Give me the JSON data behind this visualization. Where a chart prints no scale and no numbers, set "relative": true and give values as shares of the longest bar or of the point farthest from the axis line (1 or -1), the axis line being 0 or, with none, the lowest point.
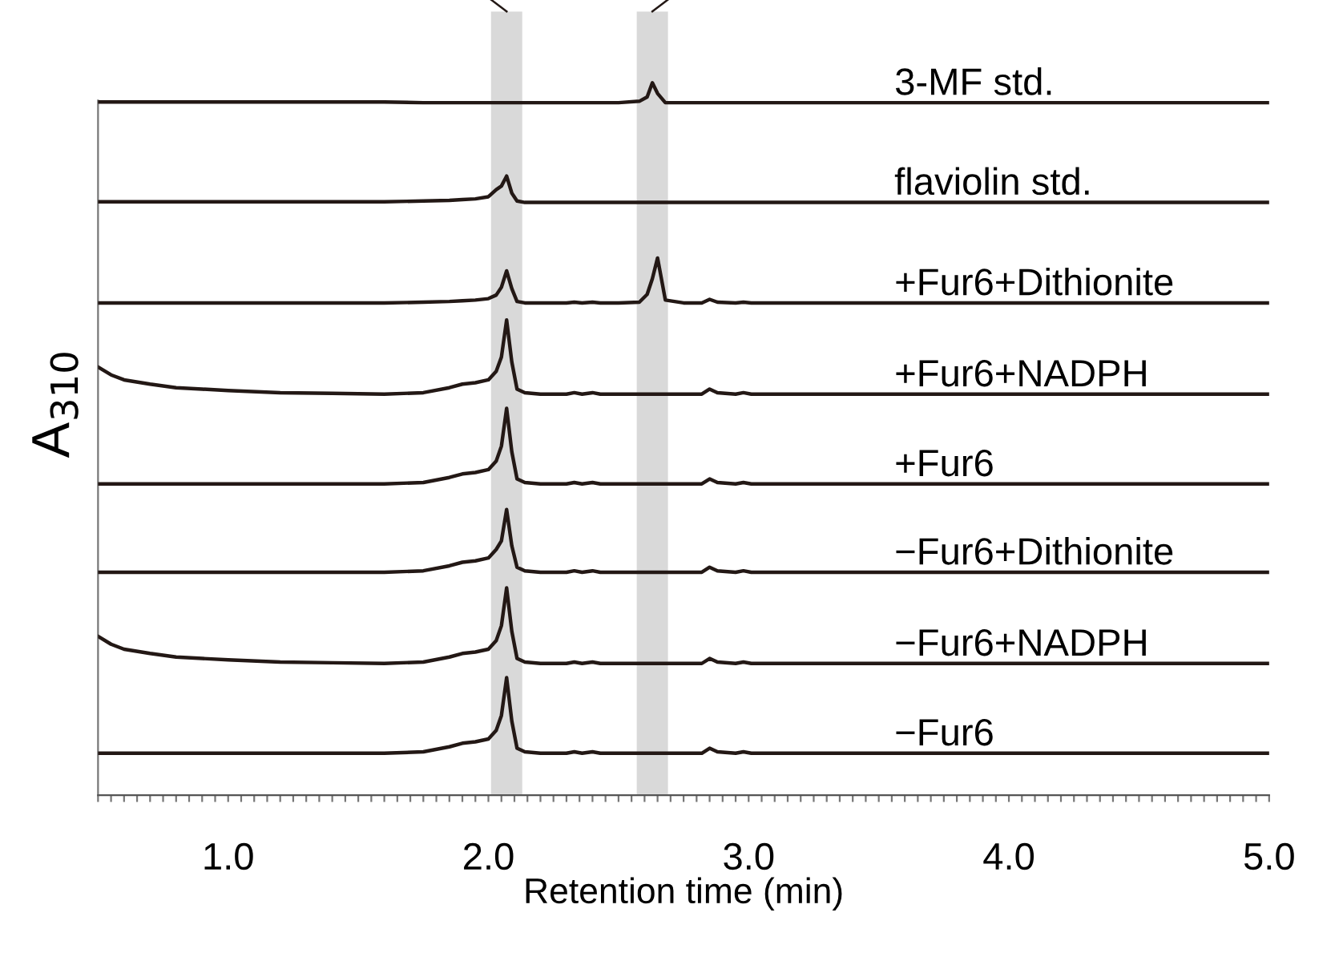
{
  "chart_data": {
    "type": "line",
    "relative": true,
    "xlabel": "Retention time (min)",
    "ylabel": "A$_{310}$",
    "xlim": [
      0.5,
      5.0
    ],
    "xticks": [
      {
        "value": 1.0,
        "label": "1.0"
      },
      {
        "value": 2.0,
        "label": "2.0"
      },
      {
        "value": 3.0,
        "label": "3.0"
      },
      {
        "value": 4.0,
        "label": "4.0"
      },
      {
        "value": 5.0,
        "label": "5.0"
      }
    ],
    "x": [
      0.5,
      0.55,
      0.6,
      0.7,
      0.8,
      0.9,
      1.0,
      1.2,
      1.4,
      1.6,
      1.75,
      1.85,
      1.9,
      1.95,
      2.0,
      2.03,
      2.05,
      2.07,
      2.09,
      2.11,
      2.14,
      2.2,
      2.3,
      2.33,
      2.36,
      2.4,
      2.43,
      2.5,
      2.58,
      2.61,
      2.63,
      2.65,
      2.68,
      2.75,
      2.82,
      2.85,
      2.88,
      2.95,
      2.98,
      3.01,
      3.1,
      3.5,
      4.0,
      4.5,
      5.0
    ],
    "bands": [
      {
        "axis": "x",
        "from": 2.01,
        "to": 2.13,
        "color": "#d9d9d9"
      },
      {
        "axis": "x",
        "from": 2.57,
        "to": 2.69,
        "color": "#d9d9d9"
      }
    ],
    "legend": false,
    "grid": false,
    "marker": "none",
    "line_style": "solid",
    "series": [
      {
        "name": "3-MF std.",
        "color": "#231815",
        "values": [
          0.973,
          0.973,
          0.973,
          0.973,
          0.973,
          0.973,
          0.973,
          0.973,
          0.973,
          0.973,
          0.972,
          0.972,
          0.972,
          0.972,
          0.972,
          0.972,
          0.972,
          0.972,
          0.972,
          0.972,
          0.972,
          0.972,
          0.972,
          0.972,
          0.972,
          0.972,
          0.972,
          0.972,
          0.974,
          0.98,
          1.0,
          0.985,
          0.972,
          0.972,
          0.972,
          0.972,
          0.972,
          0.972,
          0.972,
          0.972,
          0.972,
          0.972,
          0.972,
          0.972,
          0.972
        ]
      },
      {
        "name": "flaviolin std.",
        "color": "#231815",
        "values": [
          0.833,
          0.833,
          0.833,
          0.833,
          0.833,
          0.833,
          0.833,
          0.833,
          0.833,
          0.833,
          0.834,
          0.835,
          0.836,
          0.837,
          0.84,
          0.85,
          0.855,
          0.869,
          0.845,
          0.834,
          0.832,
          0.832,
          0.832,
          0.832,
          0.832,
          0.832,
          0.832,
          0.832,
          0.832,
          0.832,
          0.832,
          0.832,
          0.832,
          0.832,
          0.832,
          0.832,
          0.832,
          0.832,
          0.832,
          0.832,
          0.832,
          0.832,
          0.832,
          0.832,
          0.832
        ]
      },
      {
        "name": "+Fur6+Dithionite",
        "color": "#231815",
        "values": [
          0.691,
          0.691,
          0.691,
          0.691,
          0.691,
          0.691,
          0.691,
          0.691,
          0.691,
          0.691,
          0.692,
          0.693,
          0.694,
          0.695,
          0.697,
          0.702,
          0.713,
          0.736,
          0.711,
          0.693,
          0.691,
          0.691,
          0.691,
          0.692,
          0.691,
          0.692,
          0.691,
          0.691,
          0.692,
          0.703,
          0.725,
          0.754,
          0.695,
          0.691,
          0.691,
          0.696,
          0.692,
          0.691,
          0.692,
          0.691,
          0.691,
          0.691,
          0.691,
          0.691,
          0.691
        ]
      },
      {
        "name": "+Fur6+NADPH",
        "color": "#231815",
        "values": [
          0.601,
          0.59,
          0.583,
          0.577,
          0.572,
          0.57,
          0.568,
          0.565,
          0.564,
          0.563,
          0.565,
          0.572,
          0.577,
          0.579,
          0.583,
          0.595,
          0.615,
          0.667,
          0.608,
          0.57,
          0.565,
          0.563,
          0.563,
          0.565,
          0.563,
          0.565,
          0.563,
          0.563,
          0.563,
          0.563,
          0.563,
          0.563,
          0.563,
          0.563,
          0.563,
          0.57,
          0.565,
          0.563,
          0.565,
          0.563,
          0.563,
          0.563,
          0.563,
          0.563,
          0.563
        ]
      },
      {
        "name": "+Fur6",
        "color": "#231815",
        "values": [
          0.437,
          0.437,
          0.437,
          0.437,
          0.437,
          0.437,
          0.437,
          0.437,
          0.437,
          0.437,
          0.439,
          0.446,
          0.451,
          0.453,
          0.457,
          0.469,
          0.49,
          0.543,
          0.482,
          0.444,
          0.439,
          0.437,
          0.437,
          0.439,
          0.437,
          0.439,
          0.437,
          0.437,
          0.437,
          0.437,
          0.437,
          0.437,
          0.437,
          0.437,
          0.437,
          0.444,
          0.439,
          0.437,
          0.439,
          0.437,
          0.437,
          0.437,
          0.437,
          0.437,
          0.437
        ]
      },
      {
        "name": "−Fur6+Dithionite",
        "color": "#231815",
        "values": [
          0.313,
          0.313,
          0.313,
          0.313,
          0.313,
          0.313,
          0.313,
          0.313,
          0.313,
          0.313,
          0.315,
          0.322,
          0.327,
          0.329,
          0.333,
          0.345,
          0.357,
          0.401,
          0.35,
          0.32,
          0.315,
          0.313,
          0.313,
          0.315,
          0.313,
          0.315,
          0.313,
          0.313,
          0.313,
          0.313,
          0.313,
          0.313,
          0.313,
          0.313,
          0.313,
          0.32,
          0.315,
          0.313,
          0.315,
          0.313,
          0.313,
          0.313,
          0.313,
          0.313,
          0.313
        ]
      },
      {
        "name": "−Fur6+NADPH",
        "color": "#231815",
        "values": [
          0.223,
          0.212,
          0.205,
          0.199,
          0.194,
          0.192,
          0.19,
          0.187,
          0.186,
          0.185,
          0.187,
          0.194,
          0.199,
          0.201,
          0.205,
          0.217,
          0.238,
          0.291,
          0.23,
          0.192,
          0.187,
          0.185,
          0.185,
          0.187,
          0.185,
          0.187,
          0.185,
          0.185,
          0.185,
          0.185,
          0.185,
          0.185,
          0.185,
          0.185,
          0.185,
          0.192,
          0.187,
          0.185,
          0.187,
          0.185,
          0.185,
          0.185,
          0.185,
          0.185,
          0.185
        ]
      },
      {
        "name": "−Fur6",
        "color": "#231815",
        "values": [
          0.059,
          0.059,
          0.059,
          0.059,
          0.059,
          0.059,
          0.059,
          0.059,
          0.059,
          0.059,
          0.061,
          0.068,
          0.073,
          0.075,
          0.079,
          0.091,
          0.112,
          0.165,
          0.104,
          0.066,
          0.061,
          0.059,
          0.059,
          0.061,
          0.059,
          0.061,
          0.059,
          0.059,
          0.059,
          0.059,
          0.059,
          0.059,
          0.059,
          0.059,
          0.059,
          0.066,
          0.061,
          0.059,
          0.061,
          0.059,
          0.059,
          0.059,
          0.059,
          0.059,
          0.059
        ]
      }
    ]
  }
}
